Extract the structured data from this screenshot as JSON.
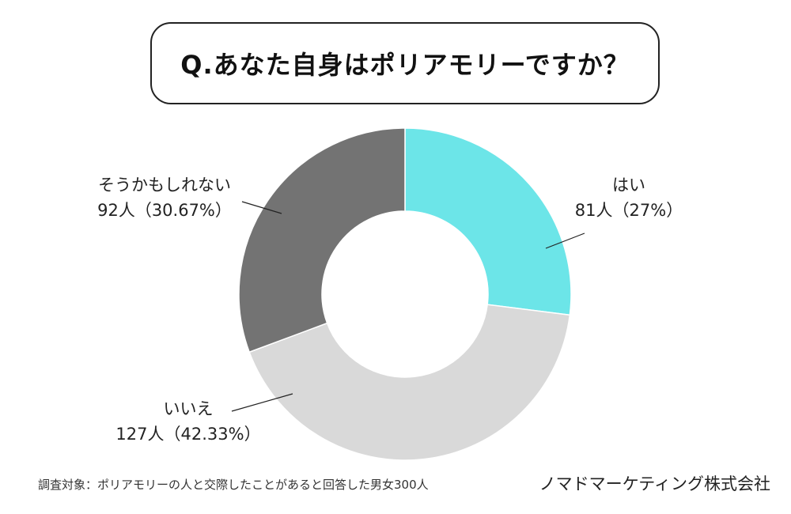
{
  "question": "Q.あなた自身はポリアモリーですか？",
  "chart_data": {
    "type": "donut",
    "title": "Q.あなた自身はポリアモリーですか？",
    "categories": [
      "はい",
      "いいえ",
      "そうかもしれない"
    ],
    "counts": [
      81,
      127,
      92
    ],
    "values": [
      27,
      42.33,
      30.67
    ],
    "value_labels": [
      "81人（27%）",
      "127人（42.33%）",
      "92人（30.67%）"
    ],
    "colors": [
      "#6ce5e8",
      "#d9d9d9",
      "#737373"
    ],
    "start": "12 o'clock",
    "direction": "clockwise"
  },
  "footnote": "調査対象：ポリアモリーの人と交際したことがあると回答した男女300人",
  "company": "ノマドマーケティング株式会社"
}
